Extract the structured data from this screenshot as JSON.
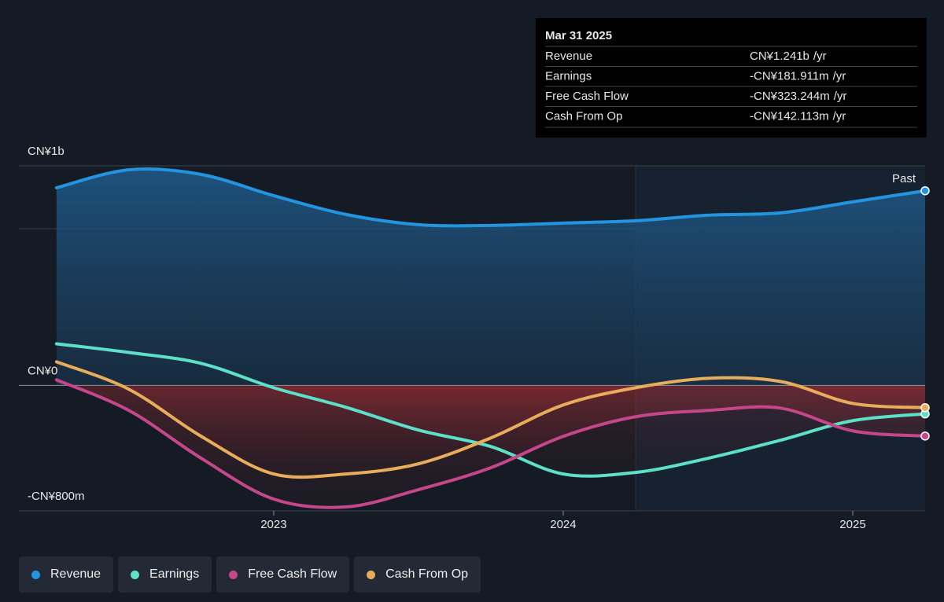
{
  "chart_data": {
    "type": "line",
    "annotation": "Past",
    "x": [
      2022.25,
      2022.5,
      2022.75,
      2023,
      2023.25,
      2023.5,
      2023.75,
      2024,
      2024.25,
      2024.5,
      2024.75,
      2025,
      2025.25
    ],
    "xlim": [
      2022.12,
      2025.25
    ],
    "xticks": [
      2023,
      2024,
      2025
    ],
    "ylim": [
      -800,
      1400
    ],
    "yticks": [
      {
        "value": -800,
        "label": "-CN¥800m"
      },
      {
        "value": 0,
        "label": "CN¥0"
      },
      {
        "value": 1400,
        "label": "CN¥1b"
      }
    ],
    "series": [
      {
        "name": "Revenue",
        "color": "#2394df",
        "values": [
          1260,
          1375,
          1345,
          1210,
          1090,
          1025,
          1020,
          1035,
          1050,
          1085,
          1100,
          1170,
          1241
        ],
        "value_labels": [
          null,
          null,
          null,
          null,
          null,
          null,
          null,
          null,
          null,
          null,
          null,
          null,
          "CN¥1.241b"
        ]
      },
      {
        "name": "Earnings",
        "color": "#5de0c8",
        "values": [
          265,
          210,
          140,
          -15,
          -140,
          -285,
          -390,
          -565,
          -555,
          -465,
          -350,
          -225,
          -181.911
        ],
        "value_labels": [
          null,
          null,
          null,
          null,
          null,
          null,
          null,
          null,
          null,
          null,
          null,
          null,
          "-CN¥181.911m"
        ]
      },
      {
        "name": "Free Cash Flow",
        "color": "#c6468a",
        "values": [
          35,
          -160,
          -465,
          -725,
          -775,
          -665,
          -525,
          -325,
          -200,
          -160,
          -145,
          -290,
          -323.244
        ],
        "value_labels": [
          null,
          null,
          null,
          null,
          null,
          null,
          null,
          null,
          null,
          null,
          null,
          null,
          "-CN¥323.244m"
        ]
      },
      {
        "name": "Cash From Op",
        "color": "#e8ad5a",
        "values": [
          150,
          -25,
          -325,
          -565,
          -565,
          -500,
          -335,
          -125,
          -15,
          45,
          25,
          -115,
          -142.113
        ],
        "value_labels": [
          null,
          null,
          null,
          null,
          null,
          null,
          null,
          null,
          null,
          null,
          null,
          null,
          "-CN¥142.113m"
        ]
      }
    ],
    "tooltip": {
      "title": "Mar 31 2025",
      "unit": "/yr"
    }
  }
}
